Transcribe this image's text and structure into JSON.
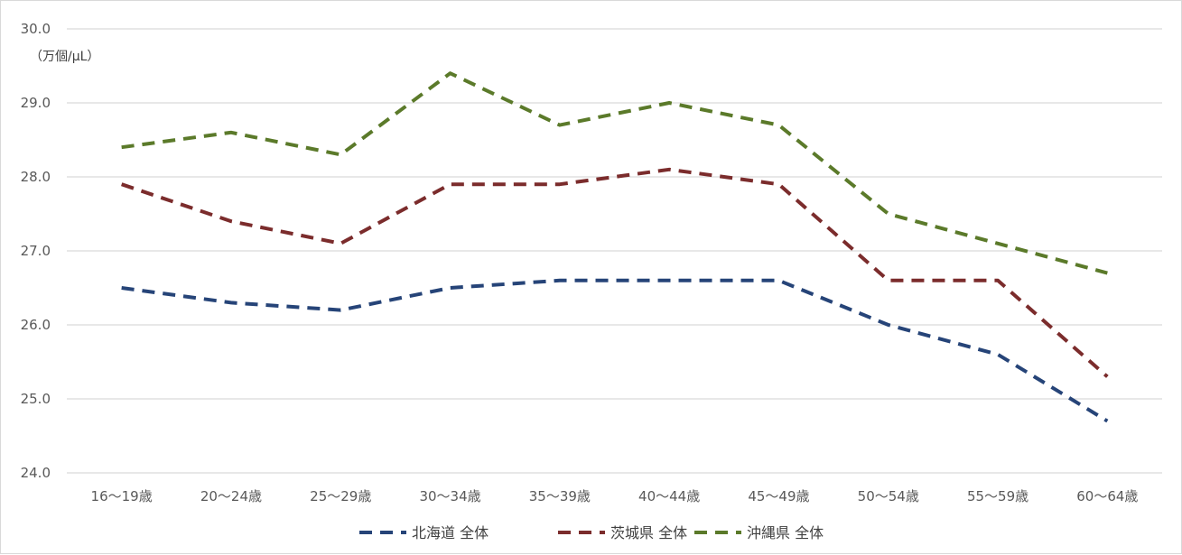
{
  "chart_data": {
    "type": "line",
    "unit_label": "（万個/μL）",
    "categories": [
      "16〜19歳",
      "20〜24歳",
      "25〜29歳",
      "30〜34歳",
      "35〜39歳",
      "40〜44歳",
      "45〜49歳",
      "50〜54歳",
      "55〜59歳",
      "60〜64歳"
    ],
    "ylim": [
      24.0,
      30.0
    ],
    "yticks": [
      "24.0",
      "25.0",
      "26.0",
      "27.0",
      "28.0",
      "29.0",
      "30.0"
    ],
    "grid": true,
    "legend_position": "bottom",
    "series": [
      {
        "name": "北海道 全体",
        "color": "#264478",
        "values": [
          26.5,
          26.3,
          26.2,
          26.5,
          26.6,
          26.6,
          26.6,
          26.0,
          25.6,
          24.7
        ]
      },
      {
        "name": "茨城県 全体",
        "color": "#7b2c2c",
        "values": [
          27.9,
          27.4,
          27.1,
          27.9,
          27.9,
          28.1,
          27.9,
          26.6,
          26.6,
          25.3
        ]
      },
      {
        "name": "沖縄県 全体",
        "color": "#5b7a2a",
        "values": [
          28.4,
          28.6,
          28.3,
          29.4,
          28.7,
          29.0,
          28.7,
          27.5,
          27.1,
          26.7
        ]
      }
    ]
  }
}
